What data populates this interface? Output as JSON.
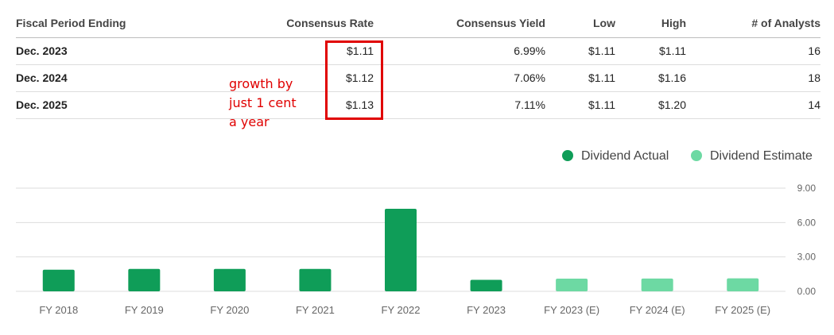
{
  "table": {
    "headers": [
      "Fiscal Period Ending",
      "Consensus Rate",
      "Consensus Yield",
      "Low",
      "High",
      "# of Analysts"
    ],
    "rows": [
      {
        "period": "Dec. 2023",
        "rate": "$1.11",
        "yield": "6.99%",
        "low": "$1.11",
        "high": "$1.11",
        "analysts": "16"
      },
      {
        "period": "Dec. 2024",
        "rate": "$1.12",
        "yield": "7.06%",
        "low": "$1.11",
        "high": "$1.16",
        "analysts": "18"
      },
      {
        "period": "Dec. 2025",
        "rate": "$1.13",
        "yield": "7.11%",
        "low": "$1.11",
        "high": "$1.20",
        "analysts": "14"
      }
    ]
  },
  "annotation": {
    "text": "growth by\njust 1 cent\na year",
    "color": "#e00000"
  },
  "legend": {
    "actual_label": "Dividend Actual",
    "estimate_label": "Dividend Estimate"
  },
  "colors": {
    "actual": "#0f9d58",
    "estimate": "#6dd9a3",
    "grid": "#dddddd",
    "axis_text": "#666666"
  },
  "chart_data": {
    "type": "bar",
    "title": "",
    "xlabel": "",
    "ylabel": "",
    "categories": [
      "FY 2018",
      "FY 2019",
      "FY 2020",
      "FY 2021",
      "FY 2022",
      "FY 2023",
      "FY 2023 (E)",
      "FY 2024 (E)",
      "FY 2025 (E)"
    ],
    "values": [
      1.89,
      1.96,
      1.96,
      1.96,
      7.2,
      1.0,
      1.11,
      1.12,
      1.13
    ],
    "kinds": [
      "actual",
      "actual",
      "actual",
      "actual",
      "actual",
      "actual",
      "estimate",
      "estimate",
      "estimate"
    ],
    "series": [
      {
        "name": "Dividend Actual",
        "values": [
          1.89,
          1.96,
          1.96,
          1.96,
          7.2,
          1.0,
          null,
          null,
          null
        ]
      },
      {
        "name": "Dividend Estimate",
        "values": [
          null,
          null,
          null,
          null,
          null,
          null,
          1.11,
          1.12,
          1.13
        ]
      }
    ],
    "ylim": [
      0,
      9
    ],
    "yticks": [
      0,
      3,
      6,
      9
    ],
    "ytick_labels": [
      "0.00",
      "3.00",
      "6.00",
      "9.00"
    ],
    "legend_position": "top-right",
    "grid": true
  }
}
